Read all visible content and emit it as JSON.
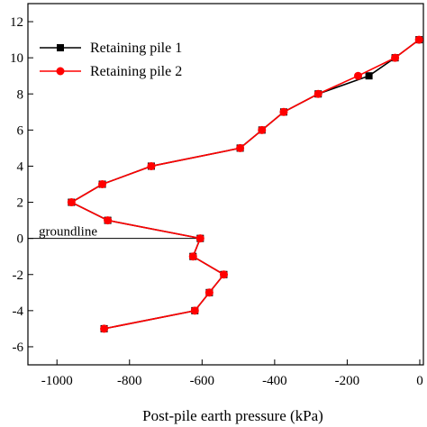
{
  "chart_data": {
    "type": "line",
    "xlabel": "Post-pile earth pressure (kPa)",
    "ylabel": "",
    "xlim": [
      -1080,
      10
    ],
    "ylim": [
      -7,
      13
    ],
    "xticks": [
      -1000,
      -800,
      -600,
      -400,
      -200,
      0
    ],
    "yticks": [
      -6,
      -4,
      -2,
      0,
      2,
      4,
      6,
      8,
      10,
      12
    ],
    "grid": false,
    "legend_position": "top-left",
    "annotation": {
      "text": "groundline",
      "y": 0,
      "x_start": -1080,
      "x_end": -605
    },
    "series": [
      {
        "name": "Retaining pile 1",
        "color": "#000000",
        "marker": "square",
        "points": [
          [
            -870,
            -5
          ],
          [
            -620,
            -4
          ],
          [
            -580,
            -3
          ],
          [
            -540,
            -2
          ],
          [
            -625,
            -1
          ],
          [
            -605,
            0
          ],
          [
            -860,
            1
          ],
          [
            -960,
            2
          ],
          [
            -875,
            3
          ],
          [
            -740,
            4
          ],
          [
            -495,
            5
          ],
          [
            -435,
            6
          ],
          [
            -375,
            7
          ],
          [
            -280,
            8
          ],
          [
            -140,
            9
          ],
          [
            -68,
            10
          ],
          [
            -2,
            11
          ]
        ]
      },
      {
        "name": "Retaining pile 2",
        "color": "#ff0000",
        "marker": "circle",
        "points": [
          [
            -870,
            -5
          ],
          [
            -620,
            -4
          ],
          [
            -580,
            -3
          ],
          [
            -540,
            -2
          ],
          [
            -625,
            -1
          ],
          [
            -605,
            0
          ],
          [
            -860,
            1
          ],
          [
            -960,
            2
          ],
          [
            -875,
            3
          ],
          [
            -740,
            4
          ],
          [
            -495,
            5
          ],
          [
            -435,
            6
          ],
          [
            -375,
            7
          ],
          [
            -280,
            8
          ],
          [
            -170,
            9
          ],
          [
            -68,
            10
          ],
          [
            -2,
            11
          ]
        ]
      }
    ]
  }
}
